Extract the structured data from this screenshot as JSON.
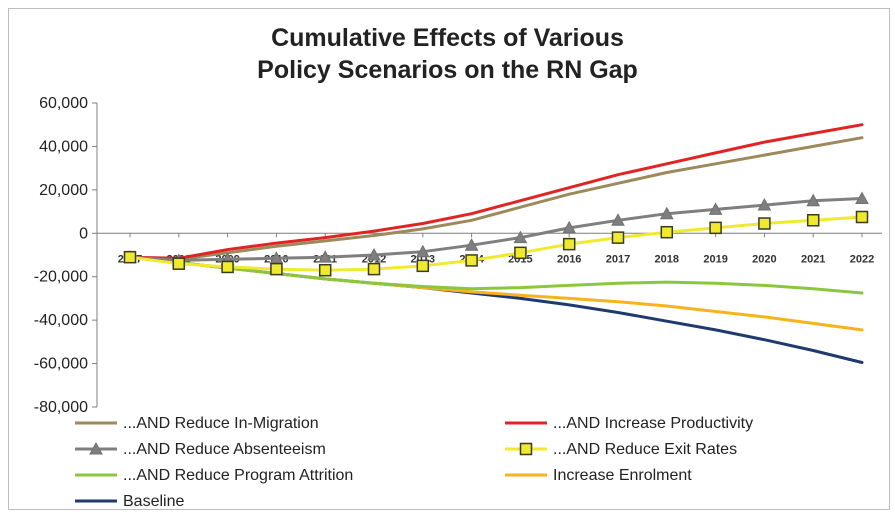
{
  "chart_data": {
    "type": "line",
    "title_lines": [
      "Cumulative Effects of Various",
      "Policy Scenarios on the RN Gap"
    ],
    "xlabel": "",
    "ylabel": "",
    "x": [
      "2007",
      "2008",
      "2009",
      "2010",
      "2011",
      "2012",
      "2013",
      "2014",
      "2015",
      "2016",
      "2017",
      "2018",
      "2019",
      "2020",
      "2021",
      "2022"
    ],
    "ylim": [
      -80000,
      60000
    ],
    "yticks": [
      -80000,
      -60000,
      -40000,
      -20000,
      0,
      20000,
      40000,
      60000
    ],
    "ytick_labels": [
      "-80,000",
      "-60,000",
      "-40,000",
      "-20,000",
      "0",
      "20,000",
      "40,000",
      "60,000"
    ],
    "grid": false,
    "legend_position": "bottom",
    "series": [
      {
        "name": "...AND Reduce In-Migration",
        "color": "#9c8a5c",
        "marker": "none",
        "values": [
          -11000,
          -12000,
          -9000,
          -6000,
          -3500,
          -1000,
          2000,
          6000,
          12000,
          18000,
          23000,
          28000,
          32000,
          36000,
          40000,
          44000
        ]
      },
      {
        "name": "...AND Increase Productivity",
        "color": "#e02424",
        "marker": "none",
        "values": [
          -11000,
          -11500,
          -7500,
          -4500,
          -2000,
          1000,
          4500,
          9000,
          15000,
          21000,
          27000,
          32000,
          37000,
          42000,
          46000,
          50000
        ]
      },
      {
        "name": "...AND Reduce Absenteeism",
        "color": "#7f7f7f",
        "marker": "triangle",
        "values": [
          -11000,
          -12500,
          -12000,
          -11500,
          -11000,
          -10000,
          -8500,
          -5500,
          -2000,
          2500,
          6000,
          9000,
          11000,
          13000,
          15000,
          16000
        ]
      },
      {
        "name": "...AND Reduce Exit Rates",
        "color": "#f0ea2e",
        "marker": "square",
        "values": [
          -11000,
          -14000,
          -15500,
          -16500,
          -17000,
          -16500,
          -15000,
          -12500,
          -9000,
          -5000,
          -2000,
          500,
          2500,
          4500,
          6000,
          7500
        ]
      },
      {
        "name": "...AND Reduce Program Attrition",
        "color": "#8cc63f",
        "marker": "none",
        "values": [
          -11000,
          -13500,
          -16000,
          -18500,
          -21000,
          -23000,
          -24500,
          -25500,
          -25000,
          -24000,
          -23000,
          -22500,
          -23000,
          -24000,
          -25500,
          -27500
        ]
      },
      {
        "name": "Increase Enrolment",
        "color": "#f8b31c",
        "marker": "none",
        "values": [
          -11000,
          -13500,
          -16000,
          -18500,
          -21000,
          -23000,
          -25000,
          -27000,
          -28500,
          -30000,
          -31500,
          -33500,
          -36000,
          -38500,
          -41500,
          -44500
        ]
      },
      {
        "name": "Baseline",
        "color": "#1f3a6e",
        "marker": "none",
        "values": [
          -11000,
          -13500,
          -16000,
          -18500,
          -21000,
          -23000,
          -25000,
          -27500,
          -30000,
          -33000,
          -36500,
          -40500,
          -44500,
          -49000,
          -54000,
          -59500
        ]
      }
    ]
  }
}
